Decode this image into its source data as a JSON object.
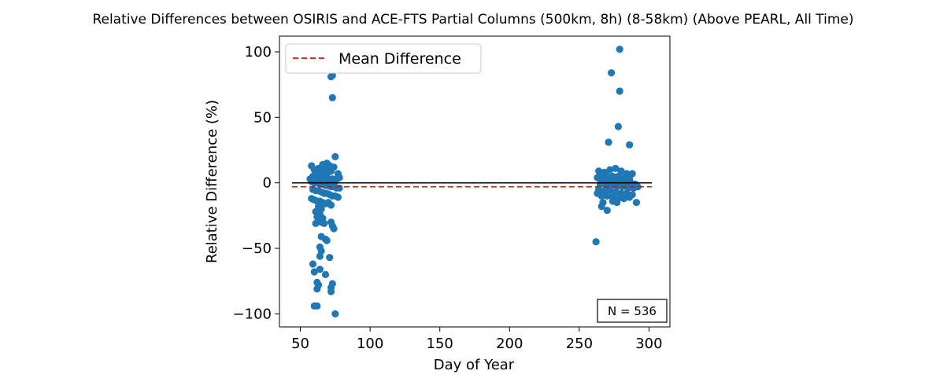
{
  "chart_data": {
    "type": "scatter",
    "title": "Relative Differences between OSIRIS and ACE-FTS Partial Columns (500km, 8h) (8-58km) (Above PEARL, All Time)",
    "xlabel": "Day of Year",
    "ylabel": "Relative Difference (%)",
    "xlim": [
      35,
      315
    ],
    "ylim": [
      -110,
      112
    ],
    "xticks": [
      50,
      100,
      150,
      200,
      250,
      300
    ],
    "yticks": [
      -100,
      -50,
      0,
      50,
      100
    ],
    "xtick_labels": [
      "50",
      "100",
      "150",
      "200",
      "250",
      "300"
    ],
    "ytick_labels": [
      "−100",
      "−50",
      "0",
      "50",
      "100"
    ],
    "grid": false,
    "legend": {
      "placement": "top-left",
      "entries": [
        {
          "label": "Mean Difference",
          "color": "#ff0000",
          "style": "dashed"
        }
      ]
    },
    "annotation": "N = 536",
    "point_color": "#1f77b4",
    "zero_line": {
      "y": 0,
      "x_range": [
        44,
        302
      ],
      "color": "#000000"
    },
    "mean_line": {
      "y": -3,
      "x_range": [
        44,
        302
      ],
      "color": "#ff0000"
    },
    "series": [
      {
        "points": [
          [
            73,
            82
          ],
          [
            73,
            65
          ],
          [
            72,
            81
          ],
          [
            75,
            20
          ],
          [
            69,
            15
          ],
          [
            66,
            14
          ],
          [
            71,
            13
          ],
          [
            58,
            13
          ],
          [
            74,
            12
          ],
          [
            63,
            11
          ],
          [
            68,
            10
          ],
          [
            60,
            10
          ],
          [
            66,
            9
          ],
          [
            72,
            9
          ],
          [
            62,
            8
          ],
          [
            70,
            8
          ],
          [
            77,
            7
          ],
          [
            64,
            7
          ],
          [
            67,
            6
          ],
          [
            59,
            5
          ],
          [
            61,
            4
          ],
          [
            65,
            4
          ],
          [
            69,
            4
          ],
          [
            73,
            3
          ],
          [
            76,
            3
          ],
          [
            78,
            4
          ],
          [
            57,
            3
          ],
          [
            63,
            2
          ],
          [
            67,
            2
          ],
          [
            71,
            2
          ],
          [
            75,
            1
          ],
          [
            58,
            1
          ],
          [
            60,
            0
          ],
          [
            62,
            0
          ],
          [
            64,
            -1
          ],
          [
            66,
            -1
          ],
          [
            68,
            -2
          ],
          [
            70,
            -2
          ],
          [
            72,
            -3
          ],
          [
            74,
            -3
          ],
          [
            76,
            -4
          ],
          [
            78,
            -4
          ],
          [
            59,
            -5
          ],
          [
            61,
            -6
          ],
          [
            63,
            -6
          ],
          [
            65,
            -7
          ],
          [
            67,
            -8
          ],
          [
            69,
            -8
          ],
          [
            71,
            -9
          ],
          [
            73,
            -10
          ],
          [
            75,
            -10
          ],
          [
            77,
            -11
          ],
          [
            58,
            -12
          ],
          [
            60,
            -13
          ],
          [
            62,
            -14
          ],
          [
            64,
            -14
          ],
          [
            66,
            -15
          ],
          [
            68,
            -16
          ],
          [
            70,
            -15
          ],
          [
            72,
            -17
          ],
          [
            63,
            -18
          ],
          [
            65,
            -20
          ],
          [
            61,
            -22
          ],
          [
            64,
            -24
          ],
          [
            62,
            -26
          ],
          [
            66,
            -27
          ],
          [
            63,
            -29
          ],
          [
            65,
            -30
          ],
          [
            67,
            -31
          ],
          [
            61,
            -31
          ],
          [
            72,
            -30
          ],
          [
            73,
            -33
          ],
          [
            74,
            -35
          ],
          [
            65,
            -41
          ],
          [
            68,
            -43
          ],
          [
            69,
            -44
          ],
          [
            64,
            -49
          ],
          [
            65,
            -52
          ],
          [
            64,
            -56
          ],
          [
            71,
            -57
          ],
          [
            59,
            -62
          ],
          [
            64,
            -66
          ],
          [
            60,
            -68
          ],
          [
            68,
            -70
          ],
          [
            62,
            -76
          ],
          [
            63,
            -78
          ],
          [
            73,
            -77
          ],
          [
            62,
            -81
          ],
          [
            72,
            -80
          ],
          [
            72,
            -83
          ],
          [
            60,
            -94
          ],
          [
            62,
            -94
          ],
          [
            75,
            -100
          ],
          [
            279,
            102
          ],
          [
            273,
            84
          ],
          [
            279,
            70
          ],
          [
            278,
            43
          ],
          [
            271,
            31
          ],
          [
            286,
            29
          ],
          [
            264,
            9
          ],
          [
            268,
            8
          ],
          [
            272,
            10
          ],
          [
            276,
            11
          ],
          [
            280,
            9
          ],
          [
            284,
            7
          ],
          [
            288,
            7
          ],
          [
            266,
            6
          ],
          [
            270,
            5
          ],
          [
            274,
            5
          ],
          [
            278,
            5
          ],
          [
            282,
            4
          ],
          [
            286,
            3
          ],
          [
            263,
            4
          ],
          [
            267,
            2
          ],
          [
            271,
            2
          ],
          [
            275,
            1
          ],
          [
            279,
            1
          ],
          [
            283,
            0
          ],
          [
            287,
            0
          ],
          [
            265,
            -1
          ],
          [
            269,
            -2
          ],
          [
            273,
            -2
          ],
          [
            277,
            -3
          ],
          [
            281,
            -3
          ],
          [
            285,
            -4
          ],
          [
            289,
            -4
          ],
          [
            264,
            -5
          ],
          [
            268,
            -6
          ],
          [
            272,
            -6
          ],
          [
            276,
            -7
          ],
          [
            280,
            -8
          ],
          [
            284,
            -8
          ],
          [
            288,
            -9
          ],
          [
            266,
            -10
          ],
          [
            270,
            -10
          ],
          [
            274,
            -11
          ],
          [
            278,
            -12
          ],
          [
            282,
            -12
          ],
          [
            286,
            -11
          ],
          [
            290,
            -1
          ],
          [
            292,
            -3
          ],
          [
            263,
            -8
          ],
          [
            267,
            -15
          ],
          [
            274,
            -14
          ],
          [
            277,
            -15
          ],
          [
            281,
            -9
          ],
          [
            291,
            -15
          ],
          [
            266,
            -18
          ],
          [
            270,
            -21
          ],
          [
            262,
            -45
          ]
        ]
      }
    ]
  }
}
